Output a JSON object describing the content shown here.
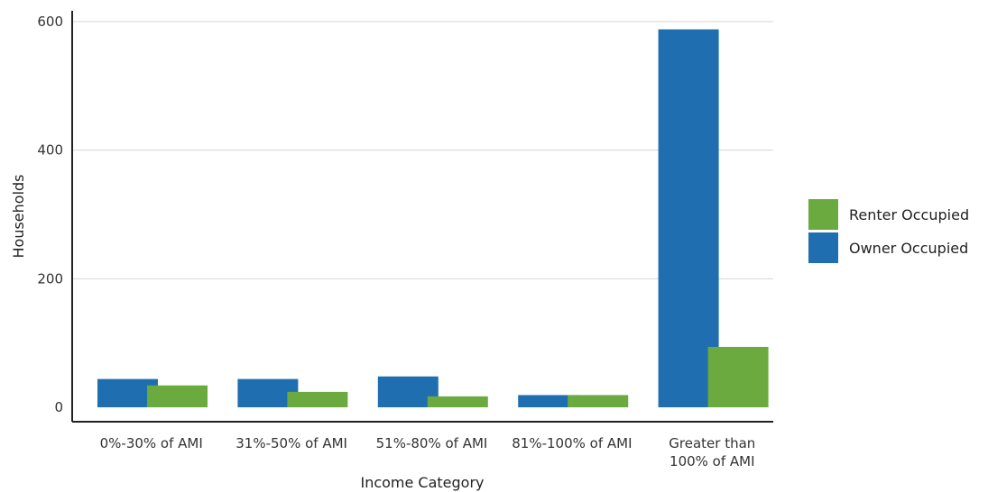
{
  "chart_data": {
    "type": "bar",
    "title": "",
    "xlabel": "Income Category",
    "ylabel": "Households",
    "categories": [
      [
        "0%-30% of AMI"
      ],
      [
        "31%-50% of AMI"
      ],
      [
        "51%-80% of AMI"
      ],
      [
        "81%-100% of AMI"
      ],
      [
        "Greater than",
        "100% of AMI"
      ]
    ],
    "series": [
      {
        "name": "Owner Occupied",
        "color": "#1f6fb0",
        "values": [
          44,
          44,
          48,
          19,
          588
        ]
      },
      {
        "name": "Renter Occupied",
        "color": "#6aaa3f",
        "values": [
          34,
          24,
          17,
          19,
          94
        ]
      }
    ],
    "legend_order": [
      "Renter Occupied",
      "Owner Occupied"
    ],
    "yticks": [
      0,
      200,
      400,
      600
    ],
    "ylim": [
      0,
      600
    ],
    "grid": true,
    "legend_position": "right"
  }
}
